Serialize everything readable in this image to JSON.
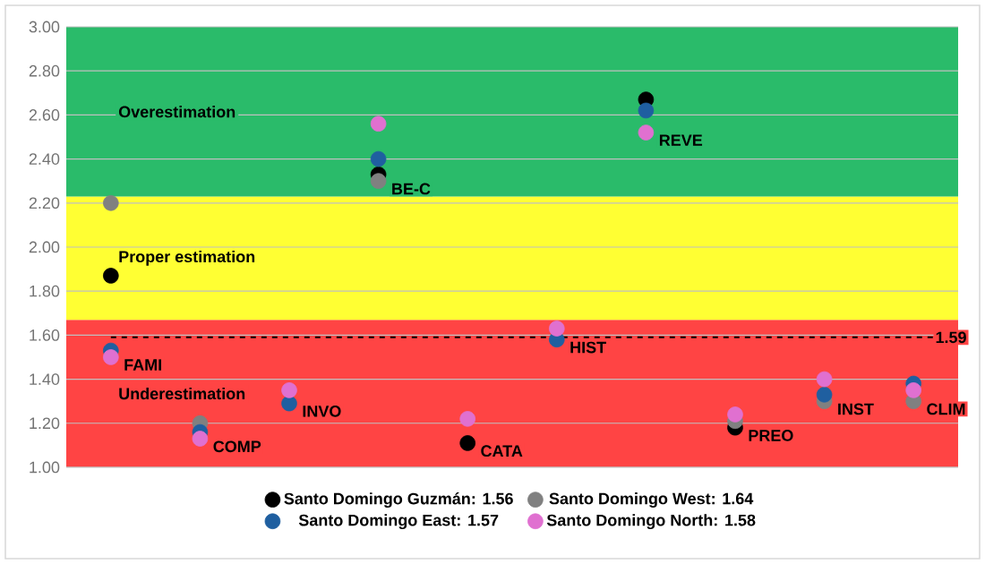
{
  "chart_data": {
    "type": "scatter",
    "categories": [
      "FAMI",
      "COMP",
      "INVO",
      "BE-C",
      "CATA",
      "HIST",
      "REVE",
      "PREO",
      "INST",
      "CLIM"
    ],
    "series": [
      {
        "name": "Santo Domingo Guzmán: 1.56",
        "color": "#000000",
        "values": [
          1.87,
          null,
          null,
          2.33,
          1.11,
          null,
          2.67,
          1.18,
          null,
          null
        ]
      },
      {
        "name": "Santo Domingo West: 1.64",
        "color": "#808080",
        "values": [
          2.2,
          1.2,
          null,
          2.3,
          null,
          null,
          null,
          1.21,
          1.3,
          1.3
        ]
      },
      {
        "name": "Santo Domingo East: 1.57",
        "color": "#1f5fa0",
        "values": [
          1.53,
          1.16,
          1.29,
          2.4,
          null,
          1.58,
          2.62,
          null,
          1.33,
          1.38
        ]
      },
      {
        "name": "Santo Domingo North: 1.58",
        "color": "#e070d0",
        "values": [
          1.5,
          1.13,
          1.35,
          2.56,
          1.22,
          1.63,
          2.52,
          1.24,
          1.4,
          1.35
        ]
      }
    ],
    "ylim": [
      1.0,
      3.0
    ],
    "yticks": [
      {
        "value": 1.0,
        "label": "1.00"
      },
      {
        "value": 1.2,
        "label": "1.20"
      },
      {
        "value": 1.4,
        "label": "1.40"
      },
      {
        "value": 1.6,
        "label": "1.60"
      },
      {
        "value": 1.8,
        "label": "1.80"
      },
      {
        "value": 2.0,
        "label": "2.00"
      },
      {
        "value": 2.2,
        "label": "2.20"
      },
      {
        "value": 2.4,
        "label": "2.40"
      },
      {
        "value": 2.6,
        "label": "2.60"
      },
      {
        "value": 2.8,
        "label": "2.80"
      },
      {
        "value": 3.0,
        "label": "3.00"
      }
    ],
    "bands": [
      {
        "axis": "y",
        "from": 1.0,
        "to": 1.67,
        "label": "Underestimation",
        "color": "#ff4444"
      },
      {
        "axis": "y",
        "from": 1.67,
        "to": 2.23,
        "label": "Proper estimation",
        "color": "#ffff33"
      },
      {
        "axis": "y",
        "from": 2.23,
        "to": 3.0,
        "label": "Overestimation",
        "color": "#2abb6a"
      }
    ],
    "ref_lines": [
      {
        "axis": "y",
        "value": 1.59,
        "label": "1.59",
        "line_style": "dashed"
      }
    ],
    "grid": "y",
    "legend": "bottom",
    "marker": "circle"
  }
}
